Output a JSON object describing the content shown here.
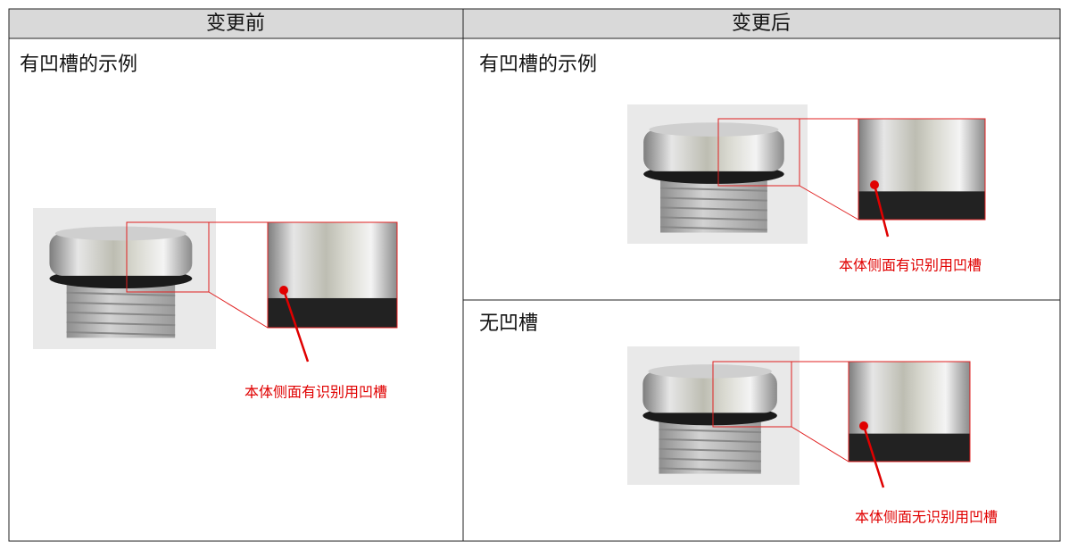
{
  "header": {
    "cells": [
      "变更前",
      "变更后"
    ]
  },
  "cells": [
    {
      "title": "有凹槽的示例",
      "callout": "本体侧面有识别用凹槽"
    },
    {
      "title": "有凹槽的示例",
      "callout": "本体侧面有识别用凹槽"
    },
    {
      "title": "无凹槽",
      "callout": "本体侧面无识别用凹槽"
    }
  ]
}
